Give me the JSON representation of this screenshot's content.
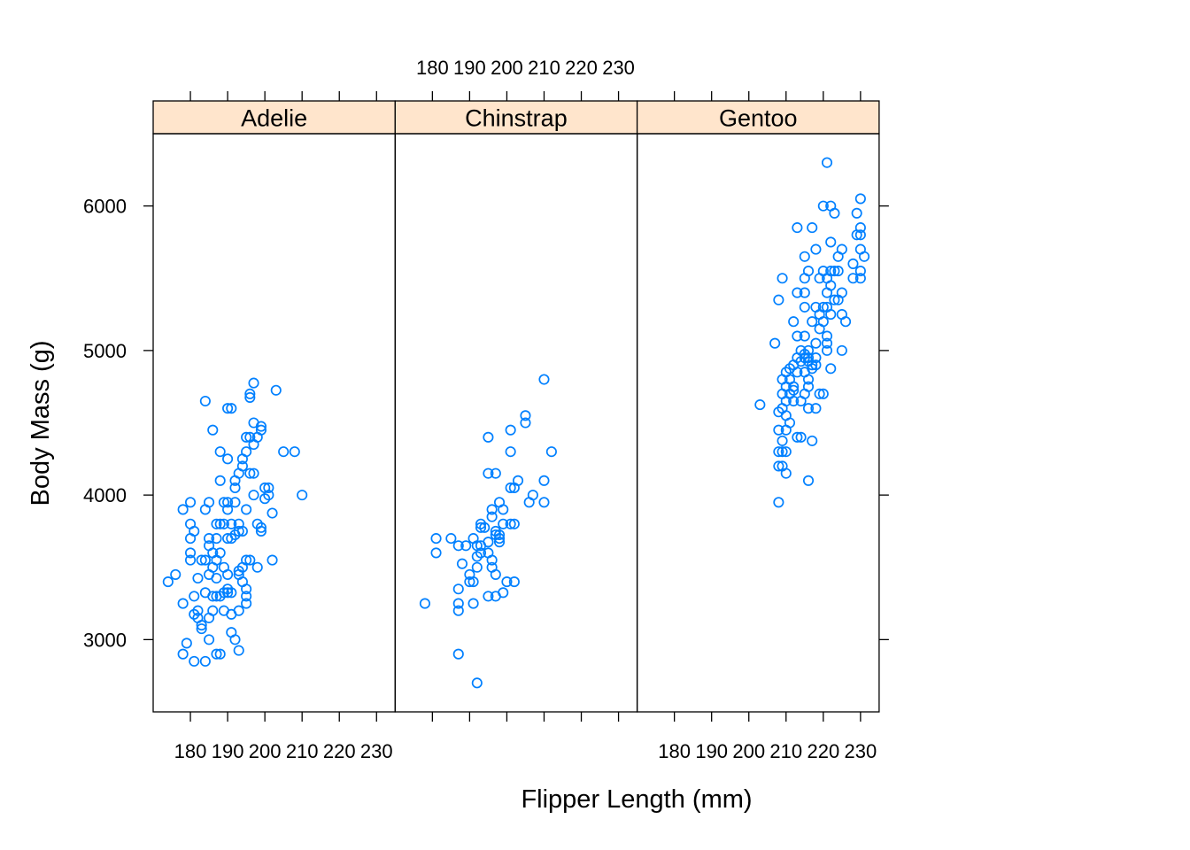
{
  "chart_data": {
    "type": "scatter",
    "xlabel": "Flipper Length (mm)",
    "ylabel": "Body Mass (g)",
    "xlim": [
      170,
      235
    ],
    "ylim": [
      2500,
      6500
    ],
    "x_ticks": [
      180,
      190,
      200,
      210,
      220,
      230
    ],
    "x_tick_labels": [
      "180",
      "190",
      "200",
      "210",
      "220",
      "230"
    ],
    "y_ticks": [
      3000,
      4000,
      5000,
      6000
    ],
    "y_tick_labels": [
      "3000",
      "4000",
      "5000",
      "6000"
    ],
    "point_color": "#0080ff",
    "strip_color": "#ffe5cc",
    "grid": false,
    "panels": [
      {
        "name": "Adelie",
        "points": [
          [
            174,
            3400
          ],
          [
            176,
            3450
          ],
          [
            178,
            3250
          ],
          [
            178,
            3900
          ],
          [
            178,
            2900
          ],
          [
            179,
            2975
          ],
          [
            180,
            3550
          ],
          [
            180,
            3600
          ],
          [
            180,
            3700
          ],
          [
            180,
            3800
          ],
          [
            180,
            3950
          ],
          [
            181,
            3750
          ],
          [
            181,
            3300
          ],
          [
            181,
            3175
          ],
          [
            181,
            2850
          ],
          [
            182,
            3200
          ],
          [
            182,
            3425
          ],
          [
            182,
            3150
          ],
          [
            183,
            3550
          ],
          [
            183,
            3100
          ],
          [
            183,
            3075
          ],
          [
            184,
            3900
          ],
          [
            184,
            4650
          ],
          [
            184,
            3325
          ],
          [
            184,
            3550
          ],
          [
            184,
            2850
          ],
          [
            185,
            3950
          ],
          [
            185,
            3700
          ],
          [
            185,
            3650
          ],
          [
            185,
            3450
          ],
          [
            185,
            3150
          ],
          [
            185,
            3000
          ],
          [
            186,
            3600
          ],
          [
            186,
            3500
          ],
          [
            186,
            3200
          ],
          [
            186,
            4450
          ],
          [
            186,
            3300
          ],
          [
            187,
            3800
          ],
          [
            187,
            3700
          ],
          [
            187,
            3550
          ],
          [
            187,
            3425
          ],
          [
            187,
            3300
          ],
          [
            187,
            2900
          ],
          [
            188,
            4300
          ],
          [
            188,
            3800
          ],
          [
            188,
            3600
          ],
          [
            188,
            3300
          ],
          [
            188,
            2900
          ],
          [
            188,
            4100
          ],
          [
            189,
            3950
          ],
          [
            189,
            3800
          ],
          [
            189,
            3500
          ],
          [
            189,
            3325
          ],
          [
            189,
            3200
          ],
          [
            190,
            4600
          ],
          [
            190,
            4250
          ],
          [
            190,
            3950
          ],
          [
            190,
            3900
          ],
          [
            190,
            3700
          ],
          [
            190,
            3450
          ],
          [
            190,
            3350
          ],
          [
            190,
            3325
          ],
          [
            191,
            4600
          ],
          [
            191,
            3800
          ],
          [
            191,
            3700
          ],
          [
            191,
            3175
          ],
          [
            191,
            3050
          ],
          [
            191,
            3325
          ],
          [
            192,
            4100
          ],
          [
            192,
            4050
          ],
          [
            192,
            3950
          ],
          [
            192,
            3725
          ],
          [
            192,
            3000
          ],
          [
            193,
            4150
          ],
          [
            193,
            3800
          ],
          [
            193,
            3750
          ],
          [
            193,
            3475
          ],
          [
            193,
            3450
          ],
          [
            193,
            3200
          ],
          [
            193,
            2925
          ],
          [
            194,
            4250
          ],
          [
            194,
            4200
          ],
          [
            194,
            3750
          ],
          [
            194,
            3500
          ],
          [
            194,
            3400
          ],
          [
            195,
            4400
          ],
          [
            195,
            4300
          ],
          [
            195,
            3900
          ],
          [
            195,
            3550
          ],
          [
            195,
            3350
          ],
          [
            195,
            3300
          ],
          [
            195,
            3250
          ],
          [
            196,
            4700
          ],
          [
            196,
            4675
          ],
          [
            196,
            4400
          ],
          [
            196,
            4150
          ],
          [
            196,
            3550
          ],
          [
            197,
            4775
          ],
          [
            197,
            4500
          ],
          [
            197,
            4350
          ],
          [
            197,
            4150
          ],
          [
            197,
            4000
          ],
          [
            198,
            4400
          ],
          [
            198,
            3800
          ],
          [
            198,
            3500
          ],
          [
            199,
            4450
          ],
          [
            199,
            3775
          ],
          [
            199,
            3750
          ],
          [
            199,
            4475
          ],
          [
            200,
            3975
          ],
          [
            200,
            4050
          ],
          [
            201,
            4000
          ],
          [
            201,
            4050
          ],
          [
            202,
            3875
          ],
          [
            202,
            3550
          ],
          [
            203,
            4725
          ],
          [
            205,
            4300
          ],
          [
            208,
            4300
          ],
          [
            210,
            4000
          ]
        ]
      },
      {
        "name": "Chinstrap",
        "points": [
          [
            178,
            3250
          ],
          [
            181,
            3700
          ],
          [
            181,
            3600
          ],
          [
            185,
            3700
          ],
          [
            187,
            3650
          ],
          [
            187,
            3350
          ],
          [
            187,
            3200
          ],
          [
            187,
            3250
          ],
          [
            187,
            2900
          ],
          [
            188,
            3525
          ],
          [
            189,
            3650
          ],
          [
            190,
            3450
          ],
          [
            190,
            3400
          ],
          [
            191,
            3700
          ],
          [
            191,
            3400
          ],
          [
            191,
            3250
          ],
          [
            192,
            3650
          ],
          [
            192,
            3575
          ],
          [
            192,
            3500
          ],
          [
            192,
            2700
          ],
          [
            193,
            3775
          ],
          [
            193,
            3800
          ],
          [
            193,
            3600
          ],
          [
            193,
            3650
          ],
          [
            194,
            3775
          ],
          [
            195,
            3675
          ],
          [
            195,
            3600
          ],
          [
            195,
            3300
          ],
          [
            195,
            4400
          ],
          [
            195,
            4150
          ],
          [
            196,
            3850
          ],
          [
            196,
            3550
          ],
          [
            196,
            3500
          ],
          [
            196,
            3900
          ],
          [
            197,
            3725
          ],
          [
            197,
            3750
          ],
          [
            197,
            3450
          ],
          [
            197,
            3300
          ],
          [
            197,
            4150
          ],
          [
            198,
            3950
          ],
          [
            198,
            3700
          ],
          [
            198,
            3675
          ],
          [
            198,
            3725
          ],
          [
            199,
            3800
          ],
          [
            199,
            3900
          ],
          [
            199,
            3325
          ],
          [
            200,
            3400
          ],
          [
            201,
            4450
          ],
          [
            201,
            4300
          ],
          [
            201,
            4050
          ],
          [
            201,
            3800
          ],
          [
            202,
            4050
          ],
          [
            202,
            3400
          ],
          [
            202,
            3800
          ],
          [
            203,
            4100
          ],
          [
            205,
            4550
          ],
          [
            205,
            4500
          ],
          [
            206,
            3950
          ],
          [
            207,
            4000
          ],
          [
            210,
            4800
          ],
          [
            210,
            4100
          ],
          [
            210,
            3950
          ],
          [
            212,
            4300
          ]
        ]
      },
      {
        "name": "Gentoo",
        "points": [
          [
            203,
            4625
          ],
          [
            207,
            5050
          ],
          [
            208,
            5350
          ],
          [
            208,
            4575
          ],
          [
            208,
            4450
          ],
          [
            208,
            4300
          ],
          [
            208,
            4200
          ],
          [
            208,
            3950
          ],
          [
            209,
            5500
          ],
          [
            209,
            4800
          ],
          [
            209,
            4700
          ],
          [
            209,
            4600
          ],
          [
            209,
            4375
          ],
          [
            209,
            4300
          ],
          [
            209,
            4200
          ],
          [
            210,
            4750
          ],
          [
            210,
            4650
          ],
          [
            210,
            4550
          ],
          [
            210,
            4850
          ],
          [
            210,
            4450
          ],
          [
            210,
            4300
          ],
          [
            210,
            4150
          ],
          [
            211,
            4800
          ],
          [
            211,
            4700
          ],
          [
            211,
            4500
          ],
          [
            211,
            4875
          ],
          [
            212,
            5200
          ],
          [
            212,
            4900
          ],
          [
            212,
            4750
          ],
          [
            212,
            4725
          ],
          [
            212,
            4650
          ],
          [
            213,
            5850
          ],
          [
            213,
            5400
          ],
          [
            213,
            5100
          ],
          [
            213,
            4950
          ],
          [
            213,
            4850
          ],
          [
            213,
            4400
          ],
          [
            214,
            5000
          ],
          [
            214,
            4925
          ],
          [
            214,
            4650
          ],
          [
            214,
            4400
          ],
          [
            215,
            5650
          ],
          [
            215,
            5500
          ],
          [
            215,
            5400
          ],
          [
            215,
            5300
          ],
          [
            215,
            5100
          ],
          [
            215,
            4950
          ],
          [
            215,
            4975
          ],
          [
            215,
            4850
          ],
          [
            215,
            4700
          ],
          [
            216,
            5550
          ],
          [
            216,
            5000
          ],
          [
            216,
            4950
          ],
          [
            216,
            4925
          ],
          [
            216,
            4800
          ],
          [
            216,
            4600
          ],
          [
            216,
            4750
          ],
          [
            216,
            4100
          ],
          [
            217,
            5850
          ],
          [
            217,
            5200
          ],
          [
            217,
            4900
          ],
          [
            217,
            4875
          ],
          [
            217,
            4375
          ],
          [
            218,
            5700
          ],
          [
            218,
            5300
          ],
          [
            218,
            5050
          ],
          [
            218,
            4950
          ],
          [
            218,
            4900
          ],
          [
            218,
            4600
          ],
          [
            219,
            5500
          ],
          [
            219,
            5250
          ],
          [
            219,
            5150
          ],
          [
            219,
            4700
          ],
          [
            220,
            6000
          ],
          [
            220,
            5550
          ],
          [
            220,
            5300
          ],
          [
            220,
            5200
          ],
          [
            220,
            4700
          ],
          [
            221,
            6300
          ],
          [
            221,
            5500
          ],
          [
            221,
            5400
          ],
          [
            221,
            5300
          ],
          [
            221,
            5100
          ],
          [
            221,
            5050
          ],
          [
            221,
            5000
          ],
          [
            222,
            6000
          ],
          [
            222,
            5750
          ],
          [
            222,
            5550
          ],
          [
            222,
            5450
          ],
          [
            222,
            4875
          ],
          [
            222,
            5250
          ],
          [
            223,
            5950
          ],
          [
            223,
            5550
          ],
          [
            223,
            5350
          ],
          [
            224,
            5650
          ],
          [
            224,
            5550
          ],
          [
            224,
            5350
          ],
          [
            225,
            5700
          ],
          [
            225,
            5400
          ],
          [
            225,
            5250
          ],
          [
            225,
            5000
          ],
          [
            226,
            5200
          ],
          [
            228,
            5600
          ],
          [
            228,
            5500
          ],
          [
            229,
            5950
          ],
          [
            229,
            5800
          ],
          [
            230,
            6050
          ],
          [
            230,
            5850
          ],
          [
            230,
            5800
          ],
          [
            230,
            5700
          ],
          [
            230,
            5550
          ],
          [
            230,
            5500
          ],
          [
            231,
            5650
          ]
        ]
      }
    ]
  }
}
